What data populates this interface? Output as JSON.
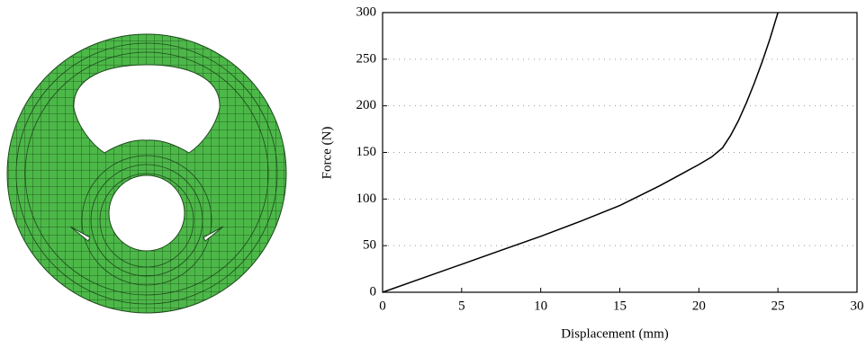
{
  "chart_data": {
    "type": "line",
    "x_label": "Displacement (mm)",
    "y_label": "Force (N)",
    "x": [
      0,
      2.5,
      5,
      7.5,
      10,
      12.5,
      15,
      17.5,
      20,
      20.8,
      21.5,
      22,
      22.5,
      23,
      23.5,
      24,
      24.5,
      25
    ],
    "series": [
      {
        "color": "#000000",
        "values": [
          0,
          15,
          30,
          45,
          60,
          76,
          93,
          114,
          137,
          145,
          155,
          168,
          184,
          203,
          224,
          247,
          272,
          300
        ]
      }
    ],
    "xlim": [
      0,
      30
    ],
    "xticks": [
      0,
      5,
      10,
      15,
      20,
      25,
      30
    ],
    "ylim": [
      0,
      300
    ],
    "yticks": [
      0,
      50,
      100,
      150,
      200,
      250,
      300
    ],
    "grid": true
  }
}
